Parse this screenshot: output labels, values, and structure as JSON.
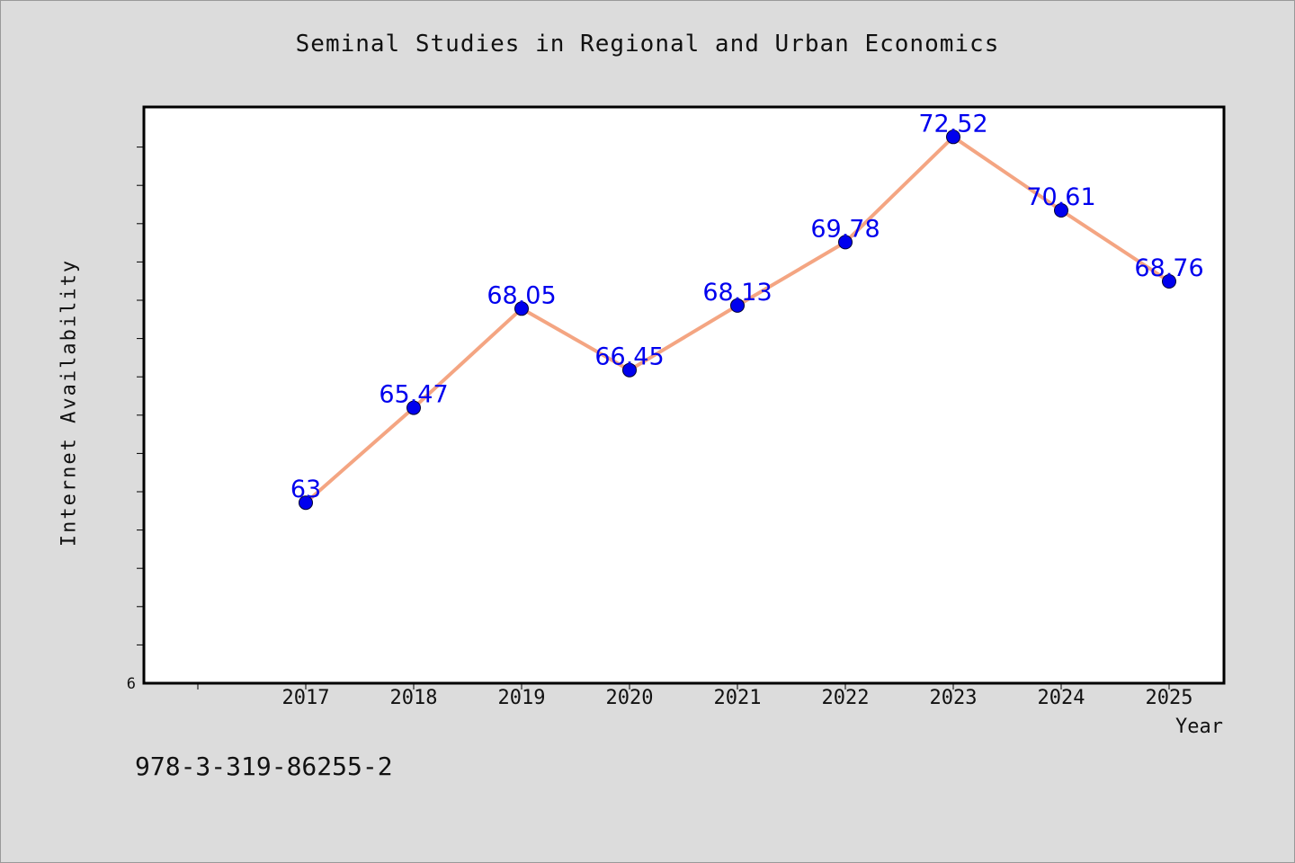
{
  "footer_text": "978-3-319-86255-2",
  "chart_data": {
    "type": "line",
    "title": "Seminal Studies in Regional and Urban Economics",
    "xlabel": "Year",
    "ylabel": "Internet Availability",
    "categories": [
      "2017",
      "2018",
      "2019",
      "2020",
      "2021",
      "2022",
      "2023",
      "2024",
      "2025"
    ],
    "values": [
      63,
      65.47,
      68.05,
      66.45,
      68.13,
      69.78,
      72.52,
      70.61,
      68.76
    ],
    "data_labels": [
      "63",
      "65.47",
      "68.05",
      "66.45",
      "68.13",
      "69.78",
      "72.52",
      "70.61",
      "68.76"
    ],
    "y_tick_label": "6",
    "ylim": [
      58.3,
      73.3
    ],
    "grid": false,
    "line_color": "#f4a582",
    "marker_color": "#0000ee",
    "label_color": "#0000ee"
  }
}
